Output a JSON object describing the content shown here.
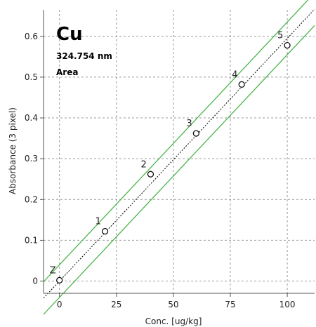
{
  "chart_data": {
    "type": "scatter",
    "title": "Cu",
    "subtitle_lines": [
      "324.754 nm",
      "Area"
    ],
    "xlabel": "Conc. [ug/kg]",
    "ylabel": "Absorbance (3 pixel)",
    "xlim": [
      -7,
      112
    ],
    "ylim": [
      -0.03,
      0.665
    ],
    "x_ticks": [
      0,
      25,
      50,
      75,
      100
    ],
    "y_ticks": [
      0,
      0.1,
      0.2,
      0.3,
      0.4,
      0.5,
      0.6
    ],
    "y_tick_labels": [
      "0",
      "0.1",
      "0.2",
      "0.3",
      "0.4",
      "0.5",
      "0.6"
    ],
    "grid": true,
    "points": [
      {
        "label": "Z",
        "x": 0,
        "y": 0.002
      },
      {
        "label": "1",
        "x": 20,
        "y": 0.122
      },
      {
        "label": "2",
        "x": 40,
        "y": 0.262
      },
      {
        "label": "3",
        "x": 60,
        "y": 0.362
      },
      {
        "label": "4",
        "x": 80,
        "y": 0.482
      },
      {
        "label": "5",
        "x": 100,
        "y": 0.578
      }
    ],
    "fit": {
      "intercept": 0.0,
      "slope": 0.00595
    },
    "confidence_band": {
      "offset": 0.04
    },
    "colors": {
      "fit_line": "#000000",
      "band": "#3cb03c",
      "grid": "#9a9a9a",
      "axis": "#555555"
    }
  }
}
